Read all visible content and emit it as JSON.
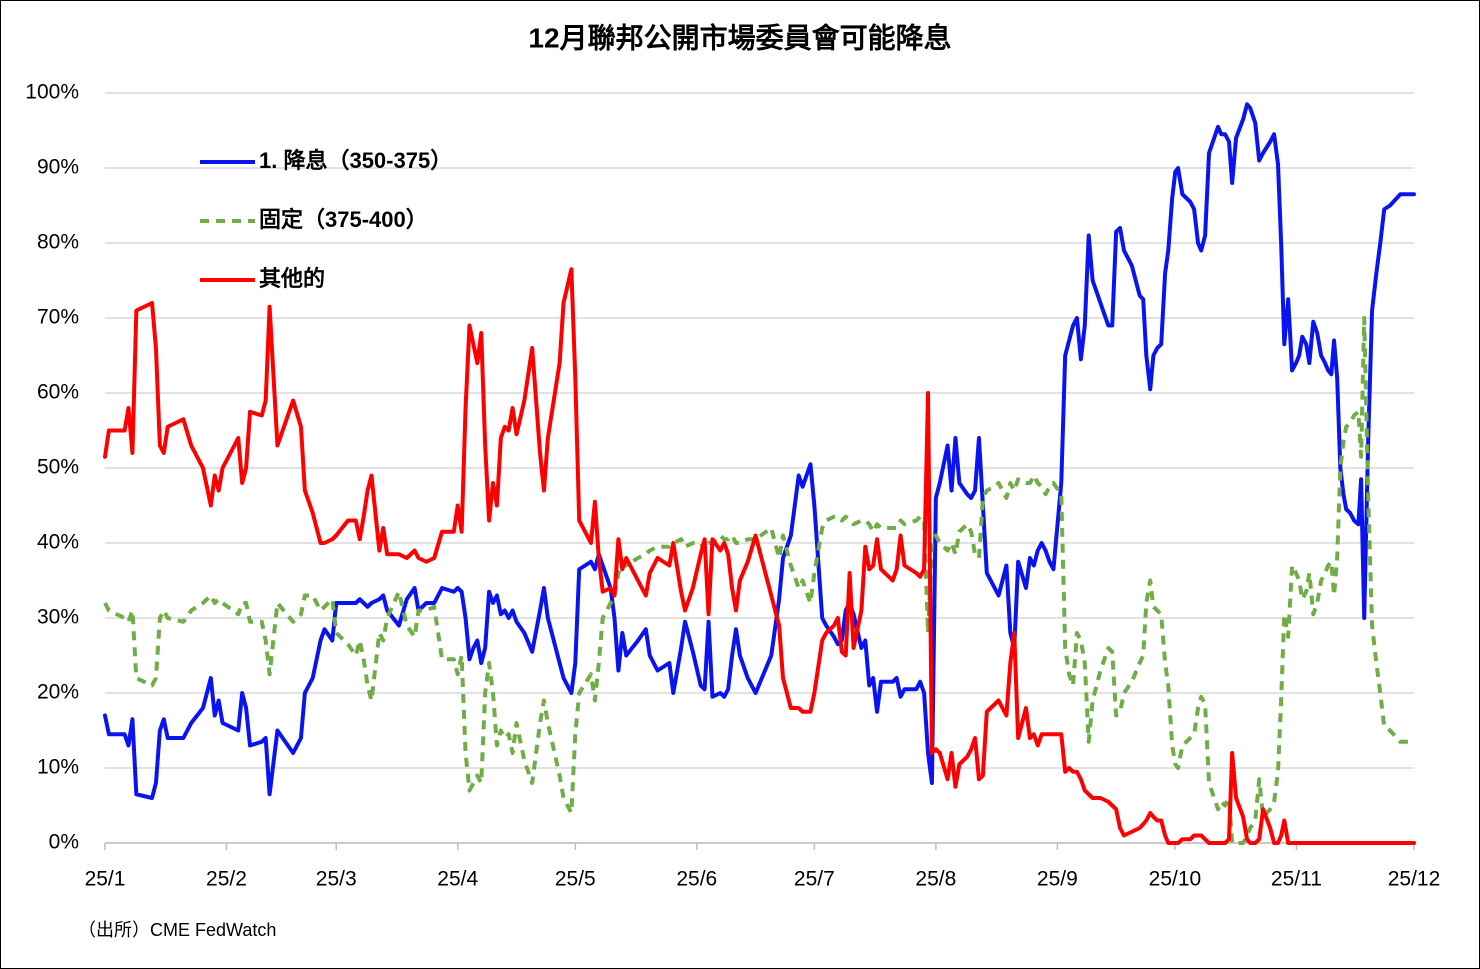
{
  "chart_data": {
    "type": "line",
    "title": "12月聯邦公開市場委員會可能降息",
    "source": "（出所）CME FedWatch",
    "legend": "upper left",
    "grid": true,
    "xlim": [
      0,
      334
    ],
    "xticks": [
      {
        "value": 0,
        "label": "25/1"
      },
      {
        "value": 31,
        "label": "25/2"
      },
      {
        "value": 59,
        "label": "25/3"
      },
      {
        "value": 90,
        "label": "25/4"
      },
      {
        "value": 120,
        "label": "25/5"
      },
      {
        "value": 151,
        "label": "25/6"
      },
      {
        "value": 181,
        "label": "25/7"
      },
      {
        "value": 212,
        "label": "25/8"
      },
      {
        "value": 243,
        "label": "25/9"
      },
      {
        "value": 273,
        "label": "25/10"
      },
      {
        "value": 304,
        "label": "25/11"
      },
      {
        "value": 334,
        "label": "25/12"
      }
    ],
    "ylim": [
      0,
      100
    ],
    "yticks": [
      {
        "value": 0,
        "label": "0%"
      },
      {
        "value": 10,
        "label": "10%"
      },
      {
        "value": 20,
        "label": "20%"
      },
      {
        "value": 30,
        "label": "30%"
      },
      {
        "value": 40,
        "label": "40%"
      },
      {
        "value": 50,
        "label": "50%"
      },
      {
        "value": 60,
        "label": "60%"
      },
      {
        "value": 70,
        "label": "70%"
      },
      {
        "value": 80,
        "label": "80%"
      },
      {
        "value": 90,
        "label": "90%"
      },
      {
        "value": 100,
        "label": "100%"
      }
    ],
    "x": [
      0,
      1,
      5,
      6,
      7,
      8,
      12,
      13,
      14,
      15,
      16,
      20,
      22,
      25,
      27,
      28,
      29,
      30,
      34,
      35,
      36,
      37,
      40,
      41,
      42,
      44,
      48,
      50,
      51,
      53,
      55,
      56,
      58,
      59,
      62,
      64,
      65,
      66,
      67,
      68,
      70,
      71,
      72,
      75,
      77,
      79,
      80,
      82,
      84,
      86,
      89,
      90,
      91,
      92,
      93,
      94,
      95,
      96,
      97,
      98,
      99,
      100,
      101,
      102,
      103,
      104,
      105,
      107,
      109,
      111,
      112,
      113,
      116,
      117,
      119,
      120,
      121,
      124,
      125,
      126,
      127,
      129,
      130,
      131,
      132,
      133,
      136,
      138,
      139,
      141,
      144,
      145,
      147,
      148,
      150,
      152,
      153,
      154,
      155,
      157,
      158,
      159,
      160,
      161,
      162,
      164,
      166,
      170,
      172,
      173,
      175,
      177,
      178,
      180,
      181,
      183,
      184,
      186,
      187,
      188,
      189,
      190,
      191,
      193,
      194,
      195,
      196,
      197,
      198,
      201,
      202,
      203,
      204,
      207,
      208,
      209,
      210,
      211,
      212,
      213,
      215,
      216,
      217,
      218,
      220,
      221,
      222,
      223,
      224,
      225,
      227,
      228,
      230,
      231,
      232,
      233,
      235,
      236,
      237,
      238,
      239,
      240,
      241,
      242,
      244,
      245,
      246,
      247,
      248,
      249,
      250,
      251,
      252,
      254,
      256,
      257,
      258,
      259,
      260,
      262,
      264,
      264.9,
      265.7,
      266.7,
      267.5,
      268.5,
      269.5,
      270.5,
      271.3,
      272.3,
      273.1,
      273.8,
      274.9,
      275.9,
      276.9,
      277.9,
      278.9,
      279.7,
      280.7,
      281.7,
      284,
      284.8,
      285.8,
      286.8,
      287.6,
      288.6,
      290.4,
      291.4,
      292.2,
      293.5,
      294.5,
      295.5,
      297.3,
      298.3,
      299.3,
      300.1,
      300.9,
      301.9,
      302.9,
      303.9,
      304.7,
      305.5,
      306.5,
      307.3,
      308.3,
      309.3,
      310.3,
      311.3,
      312.1,
      312.9,
      313.6,
      314.4,
      315.2,
      316,
      316.7,
      317.7,
      318.7,
      319.8,
      320.5,
      321.3,
      322.3,
      323.3,
      324.4,
      325.4,
      326.4,
      327.9,
      330.5,
      334
    ],
    "series": [
      {
        "name": "1. 降息（350-375）",
        "color": "#0a14f0",
        "line_style": "solid",
        "values": [
          17,
          14.5,
          14.5,
          13,
          16.5,
          6.5,
          6,
          8,
          15,
          16.5,
          14,
          14,
          16,
          18,
          22,
          17,
          19,
          16,
          15,
          20,
          18,
          13,
          13.5,
          14,
          6.5,
          15,
          12,
          14,
          20,
          22,
          27,
          28.5,
          27,
          32,
          32,
          32,
          32.5,
          32,
          31.5,
          32,
          32.5,
          33,
          31,
          29,
          32.5,
          34,
          31,
          32,
          32,
          34,
          33.5,
          34,
          33.5,
          30,
          24.5,
          26,
          27,
          24,
          26,
          33.5,
          32,
          33,
          30.5,
          31,
          30,
          31,
          29.5,
          28,
          25.5,
          31,
          34,
          30,
          24,
          22,
          20,
          24,
          36.5,
          37.5,
          36.5,
          38.5,
          37,
          34,
          30,
          23,
          28,
          25,
          27,
          28.5,
          25,
          23,
          24,
          20,
          26,
          29.5,
          25.5,
          21,
          20.5,
          29.5,
          19.5,
          20,
          19.5,
          20.5,
          25,
          28.5,
          25,
          22,
          20,
          25,
          32.5,
          38,
          41,
          49,
          47.5,
          50.5,
          45,
          30,
          29,
          27.5,
          26.5,
          27,
          31,
          32,
          30.5,
          26,
          27,
          21,
          22,
          17.5,
          21.5,
          21.5,
          22,
          19.5,
          20.5,
          20.5,
          21.5,
          20,
          12,
          8,
          46,
          48,
          53,
          47,
          54,
          48,
          46.5,
          46,
          47,
          54,
          45,
          36,
          34,
          33,
          37,
          28,
          26,
          37.5,
          34,
          38,
          37,
          39,
          40,
          39,
          37.5,
          36.5,
          48,
          65,
          67,
          69,
          70,
          64.5,
          69,
          81,
          75,
          72,
          69,
          69,
          81.5,
          82,
          79,
          77,
          73,
          72.5,
          65,
          60.5,
          65,
          66,
          66.5,
          76,
          79,
          86,
          89.5,
          90,
          86.5,
          86,
          85.5,
          84.5,
          80,
          79,
          81,
          92,
          95.5,
          94.5,
          94.5,
          93.5,
          88,
          94,
          96.5,
          98.5,
          98,
          96,
          91,
          92,
          93.5,
          94.5,
          90.5,
          80,
          66.5,
          72.5,
          63,
          64,
          65,
          67.5,
          66.5,
          64,
          69.5,
          68,
          65,
          64,
          63,
          62.5,
          67,
          62,
          50,
          46.5,
          44.5,
          44,
          43,
          42.5,
          48.5,
          30,
          53.5,
          71,
          76,
          80,
          84.5,
          85,
          86.5,
          86.5
        ]
      },
      {
        "name": "固定（375-400）",
        "color": "#70ad47",
        "line_style": "dashed",
        "values": [
          32,
          31,
          30,
          29.5,
          31,
          22,
          21,
          22,
          30,
          31,
          30,
          29.5,
          31,
          32,
          33,
          32,
          32.5,
          32,
          30.5,
          32,
          32,
          29.5,
          29.5,
          27,
          22.5,
          32,
          29.5,
          30.5,
          33,
          33,
          31,
          31.5,
          32.5,
          28,
          26.5,
          25,
          27,
          24.5,
          21,
          19,
          28,
          27,
          30,
          33.5,
          29,
          27.5,
          31,
          31,
          31.5,
          24.5,
          24.5,
          22.5,
          25,
          12,
          7,
          8,
          9,
          8,
          20,
          24,
          20,
          13,
          15,
          14,
          14.5,
          12,
          16,
          11,
          8,
          16,
          19,
          16,
          9,
          6,
          4,
          14.5,
          20,
          22.5,
          19,
          24,
          30,
          32,
          33,
          36,
          37.5,
          37,
          38,
          38.5,
          39,
          39.5,
          39.5,
          40,
          40.5,
          39.5,
          40,
          40,
          39,
          40,
          40,
          41,
          40.5,
          40.5,
          41,
          40,
          40,
          40.5,
          40.5,
          42,
          38,
          41,
          37,
          34,
          35,
          32,
          36,
          42,
          43,
          43.5,
          43.5,
          43,
          43.5,
          43,
          42.5,
          43,
          43,
          42.5,
          41.5,
          42.5,
          42,
          42,
          42,
          43,
          42.5,
          43,
          43.5,
          43,
          28,
          40,
          41,
          40,
          39,
          40,
          38.5,
          41.5,
          42.5,
          41.5,
          38.5,
          38,
          46,
          47,
          47.5,
          48,
          46,
          48,
          47,
          48.5,
          48,
          48,
          49,
          48,
          47.5,
          46.5,
          47.5,
          48,
          46.5,
          26,
          22.5,
          21,
          28,
          27,
          24,
          13.5,
          19,
          23,
          26,
          25.5,
          17,
          17.5,
          20,
          21.5,
          24,
          25,
          32,
          35,
          31.5,
          31,
          30.5,
          24,
          21,
          13,
          10.5,
          10,
          13,
          13.5,
          14,
          14.5,
          18,
          19.5,
          18.5,
          8,
          4.5,
          5.5,
          5,
          6,
          0,
          0,
          0,
          1,
          2,
          3,
          8.5,
          3.5,
          4.5,
          5.5,
          9.5,
          19,
          30.5,
          27.5,
          37,
          36,
          35,
          32.5,
          33.5,
          36,
          30.5,
          32,
          35,
          36,
          37,
          37.5,
          33,
          38,
          50,
          53.5,
          55.5,
          56,
          57,
          57.5,
          51.5,
          70,
          46.5,
          29,
          24,
          20,
          15.5,
          15,
          13.5,
          13.5
        ]
      },
      {
        "name": "其他的",
        "color": "#ff0000",
        "line_style": "solid",
        "values": [
          51.5,
          55,
          55,
          58,
          52,
          71,
          72,
          66,
          53,
          52,
          55.5,
          56.5,
          53,
          50,
          45,
          49,
          47,
          50,
          54,
          48,
          50,
          57.5,
          57,
          59,
          71.5,
          53,
          59,
          55.5,
          47,
          44,
          40,
          40,
          40.5,
          41,
          43,
          43,
          40.5,
          43.5,
          47,
          49,
          39,
          42,
          38.5,
          38.5,
          38,
          39,
          38,
          37.5,
          38,
          41.5,
          41.5,
          45,
          41.5,
          58,
          69,
          66.5,
          64,
          68,
          53,
          43,
          48,
          45,
          54,
          55.5,
          55,
          58,
          54.5,
          59,
          66,
          52,
          47,
          54,
          64,
          72,
          76.5,
          62,
          43,
          40,
          45.5,
          38,
          33.5,
          34,
          33,
          40.5,
          36.5,
          38,
          35,
          33,
          36,
          38,
          37,
          40,
          33.5,
          31,
          34,
          38.5,
          40.5,
          30.5,
          40.5,
          39,
          40,
          38.5,
          34,
          31,
          35,
          37.5,
          41,
          33,
          29,
          22,
          18,
          18,
          17.5,
          17.5,
          20,
          27,
          28,
          29,
          30,
          25.5,
          25,
          36,
          26,
          31,
          39.5,
          36.5,
          37,
          40.5,
          36.5,
          35,
          36.5,
          41,
          37,
          36,
          35.5,
          36.5,
          60,
          12,
          12.5,
          12,
          8.5,
          12,
          7.5,
          10.5,
          11.5,
          12.5,
          14,
          8.5,
          9,
          17.5,
          18.5,
          19,
          17,
          24,
          28,
          14,
          18,
          14,
          14.5,
          13,
          14.5,
          14.5,
          14.5,
          14.5,
          14.5,
          9.5,
          10,
          9.5,
          9.5,
          8.5,
          7,
          6.5,
          6,
          6,
          5.5,
          5,
          4.5,
          2,
          1,
          1.5,
          2,
          2.5,
          3,
          4,
          3.5,
          3,
          3,
          1,
          0,
          0,
          0,
          0,
          0.5,
          0.5,
          0.5,
          1,
          1,
          1,
          0.5,
          0,
          0,
          0,
          0,
          0.5,
          12,
          6,
          3.5,
          0.5,
          0,
          0,
          0.5,
          4.5,
          2,
          0,
          0,
          1,
          3,
          0,
          0,
          0,
          0,
          0,
          0,
          0,
          0,
          0,
          0,
          0,
          0,
          0,
          0,
          0,
          0,
          0,
          0,
          0,
          0,
          0,
          0,
          0,
          0,
          0,
          0,
          0,
          0,
          0,
          0,
          0
        ]
      }
    ]
  }
}
